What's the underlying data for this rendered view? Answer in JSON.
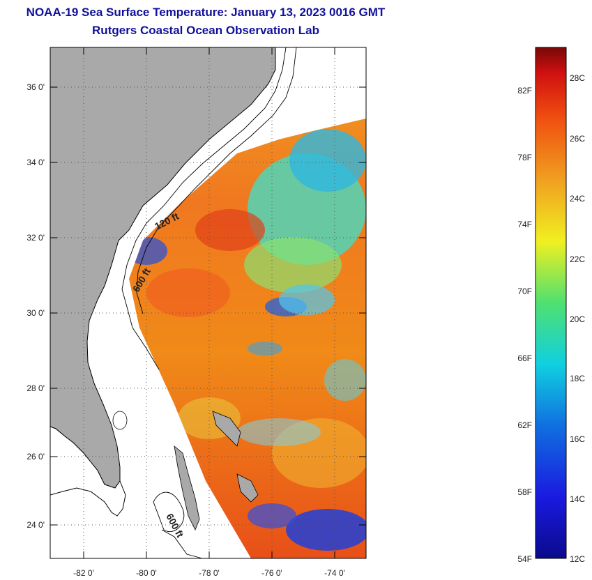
{
  "header": {
    "title": "NOAA-19 Sea Surface Temperature:  January 13, 2023 0016 GMT",
    "subtitle": "Rutgers Coastal Ocean Observation Lab"
  },
  "map": {
    "lon_ticks": [
      "-82 0'",
      "-80 0'",
      "-78 0'",
      "-76 0'",
      "-74 0'"
    ],
    "lat_ticks": [
      "36 0'",
      "34 0'",
      "32 0'",
      "30 0'",
      "28 0'",
      "26 0'",
      "24 0'"
    ],
    "depth_labels": [
      "120 ft",
      "600 ft",
      "600 ft"
    ],
    "colors": {
      "land": "#a9a9a9",
      "frame": "#000000"
    }
  },
  "colorbar": {
    "fahrenheit": [
      "82F",
      "78F",
      "74F",
      "70F",
      "66F",
      "62F",
      "58F",
      "54F"
    ],
    "celsius": [
      "28C",
      "26C",
      "24C",
      "22C",
      "20C",
      "18C",
      "16C",
      "14C",
      "12C"
    ],
    "range_c": [
      12,
      29.5
    ]
  }
}
